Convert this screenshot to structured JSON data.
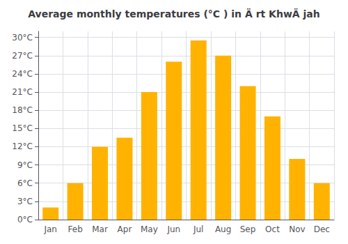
{
  "chart_data": {
    "type": "bar",
    "title": "Average monthly temperatures (°C ) in Ä rt KhwÄ jah",
    "categories": [
      "Jan",
      "Feb",
      "Mar",
      "Apr",
      "May",
      "Jun",
      "Jul",
      "Aug",
      "Sep",
      "Oct",
      "Nov",
      "Dec"
    ],
    "values": [
      2.0,
      6.0,
      12.0,
      13.5,
      21.0,
      26.0,
      29.5,
      27.0,
      22.0,
      17.0,
      10.0,
      6.0
    ],
    "color": "#FFB300",
    "ylim": [
      0,
      31
    ],
    "yticks": [
      {
        "value": 0,
        "label": "0°C"
      },
      {
        "value": 3,
        "label": "3°C"
      },
      {
        "value": 6,
        "label": "6°C"
      },
      {
        "value": 9,
        "label": "9°C"
      },
      {
        "value": 12,
        "label": "12°C"
      },
      {
        "value": 15,
        "label": "15°C"
      },
      {
        "value": 18,
        "label": "18°C"
      },
      {
        "value": 21,
        "label": "21°C"
      },
      {
        "value": 24,
        "label": "24°C"
      },
      {
        "value": 27,
        "label": "27°C"
      },
      {
        "value": 30,
        "label": "30°C"
      }
    ],
    "grid": true
  }
}
